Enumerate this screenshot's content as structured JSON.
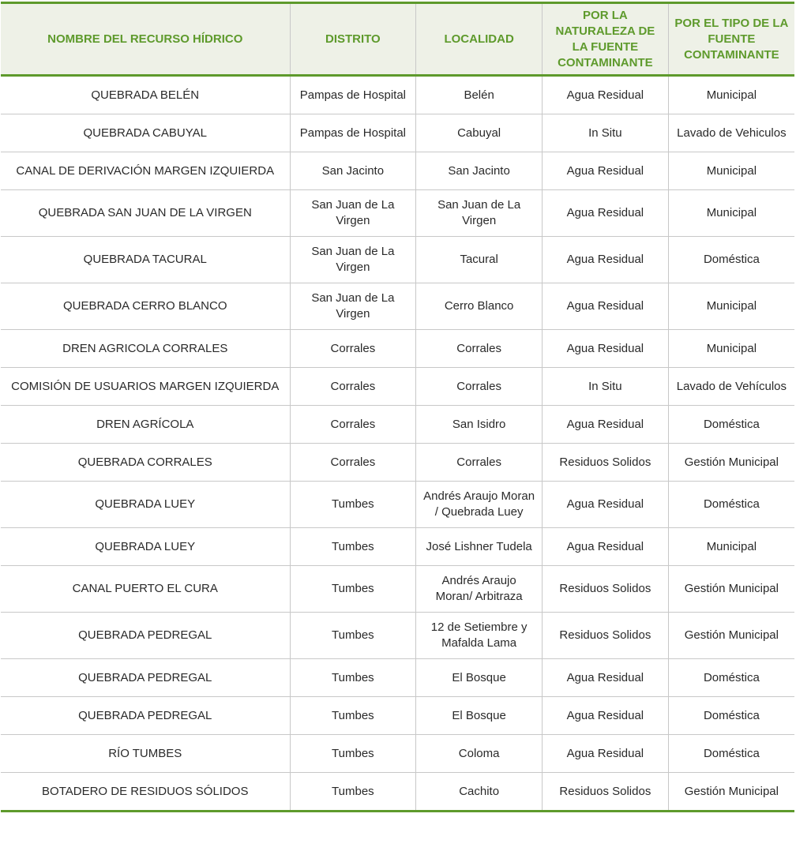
{
  "headers": [
    "NOMBRE DEL RECURSO HÍDRICO",
    "DISTRITO",
    "LOCALIDAD",
    "POR LA NATURALEZA DE LA FUENTE CONTAMINANTE",
    "POR EL TIPO DE LA FUENTE CONTAMINANTE"
  ],
  "colors": {
    "accent": "#5e9a2c",
    "header_bg": "#eef1e7",
    "grid": "#c8c8c8"
  },
  "rows": [
    [
      "QUEBRADA BELÉN",
      "Pampas de Hospital",
      "Belén",
      "Agua Residual",
      "Municipal"
    ],
    [
      "QUEBRADA CABUYAL",
      "Pampas de Hospital",
      "Cabuyal",
      "In Situ",
      "Lavado de Vehiculos"
    ],
    [
      "CANAL DE DERIVACIÓN MARGEN IZQUIERDA",
      "San Jacinto",
      "San Jacinto",
      "Agua Residual",
      "Municipal"
    ],
    [
      "QUEBRADA SAN JUAN DE LA VIRGEN",
      "San Juan de La Virgen",
      "San Juan de La Virgen",
      "Agua Residual",
      "Municipal"
    ],
    [
      "QUEBRADA TACURAL",
      "San Juan de La Virgen",
      "Tacural",
      "Agua Residual",
      "Doméstica"
    ],
    [
      "QUEBRADA CERRO BLANCO",
      "San Juan de La Virgen",
      "Cerro Blanco",
      "Agua Residual",
      "Municipal"
    ],
    [
      "DREN AGRICOLA CORRALES",
      "Corrales",
      "Corrales",
      "Agua Residual",
      "Municipal"
    ],
    [
      "COMISIÓN DE USUARIOS MARGEN IZQUIERDA",
      "Corrales",
      "Corrales",
      "In Situ",
      "Lavado de Vehículos"
    ],
    [
      "DREN AGRÍCOLA",
      "Corrales",
      "San Isidro",
      "Agua Residual",
      "Doméstica"
    ],
    [
      "QUEBRADA CORRALES",
      "Corrales",
      "Corrales",
      "Residuos Solidos",
      "Gestión Municipal"
    ],
    [
      "QUEBRADA LUEY",
      "Tumbes",
      "Andrés Araujo Moran / Quebrada Luey",
      "Agua Residual",
      "Doméstica"
    ],
    [
      "QUEBRADA LUEY",
      "Tumbes",
      "José Lishner Tudela",
      "Agua Residual",
      "Municipal"
    ],
    [
      "CANAL PUERTO EL CURA",
      "Tumbes",
      "Andrés Araujo Moran/ Arbitraza",
      "Residuos Solidos",
      "Gestión Municipal"
    ],
    [
      "QUEBRADA PEDREGAL",
      "Tumbes",
      "12 de Setiembre y Mafalda Lama",
      "Residuos Solidos",
      "Gestión Municipal"
    ],
    [
      "QUEBRADA PEDREGAL",
      "Tumbes",
      "El Bosque",
      "Agua Residual",
      "Doméstica"
    ],
    [
      "QUEBRADA PEDREGAL",
      "Tumbes",
      "El Bosque",
      "Agua Residual",
      "Doméstica"
    ],
    [
      "RÍO TUMBES",
      "Tumbes",
      "Coloma",
      "Agua Residual",
      "Doméstica"
    ],
    [
      "BOTADERO DE RESIDUOS SÓLIDOS",
      "Tumbes",
      "Cachito",
      "Residuos Solidos",
      "Gestión Municipal"
    ]
  ]
}
